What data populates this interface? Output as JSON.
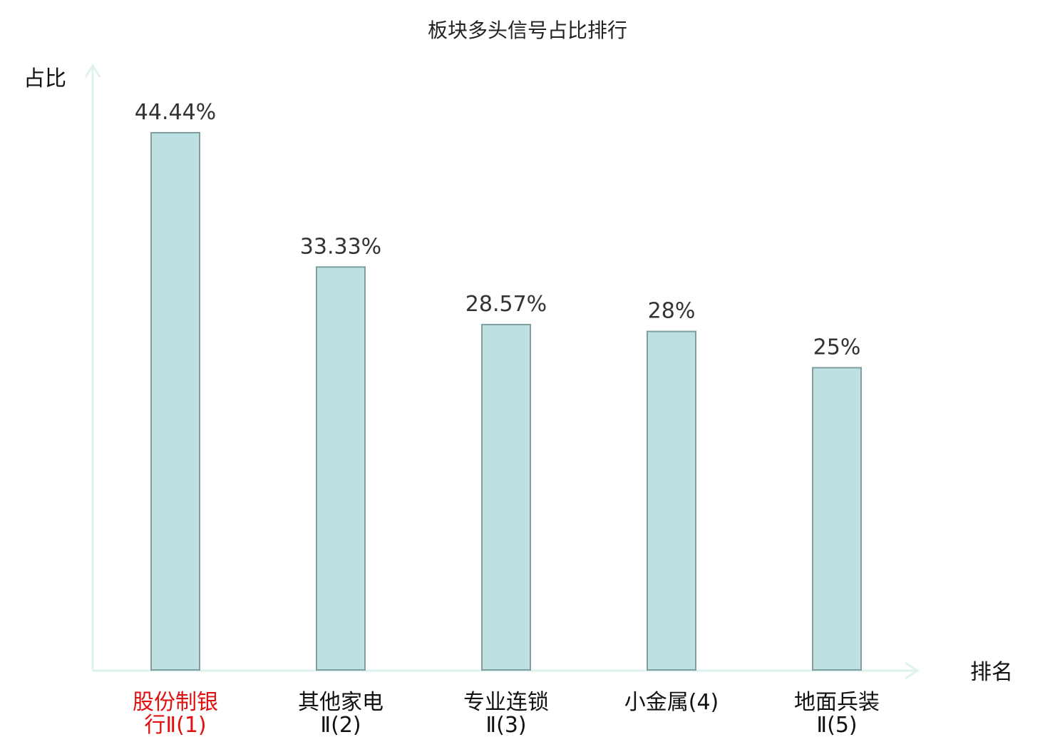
{
  "chart_data": {
    "type": "bar",
    "title": "板块多头信号占比排行",
    "xlabel": "排名",
    "ylabel": "占比",
    "categories": [
      {
        "line1": "股份制银",
        "line2": "行Ⅱ(1)",
        "highlight": true
      },
      {
        "line1": "其他家电",
        "line2": "Ⅱ(2)",
        "highlight": false
      },
      {
        "line1": "专业连锁",
        "line2": "Ⅱ(3)",
        "highlight": false
      },
      {
        "line1": "小金属(4)",
        "line2": "",
        "highlight": false
      },
      {
        "line1": "地面兵装",
        "line2": "Ⅱ(5)",
        "highlight": false
      }
    ],
    "values": [
      44.44,
      33.33,
      28.57,
      28,
      25
    ],
    "value_labels": [
      "44.44%",
      "33.33%",
      "28.57%",
      "28%",
      "25%"
    ],
    "ylim": [
      0,
      44.44
    ],
    "grid": false,
    "legend": "none",
    "colors": {
      "bar_fill": "#bde0e2",
      "bar_stroke": "#7f9ea0",
      "axis": "#dff2f0",
      "text": "#333333",
      "highlight_text": "#e01010"
    }
  }
}
